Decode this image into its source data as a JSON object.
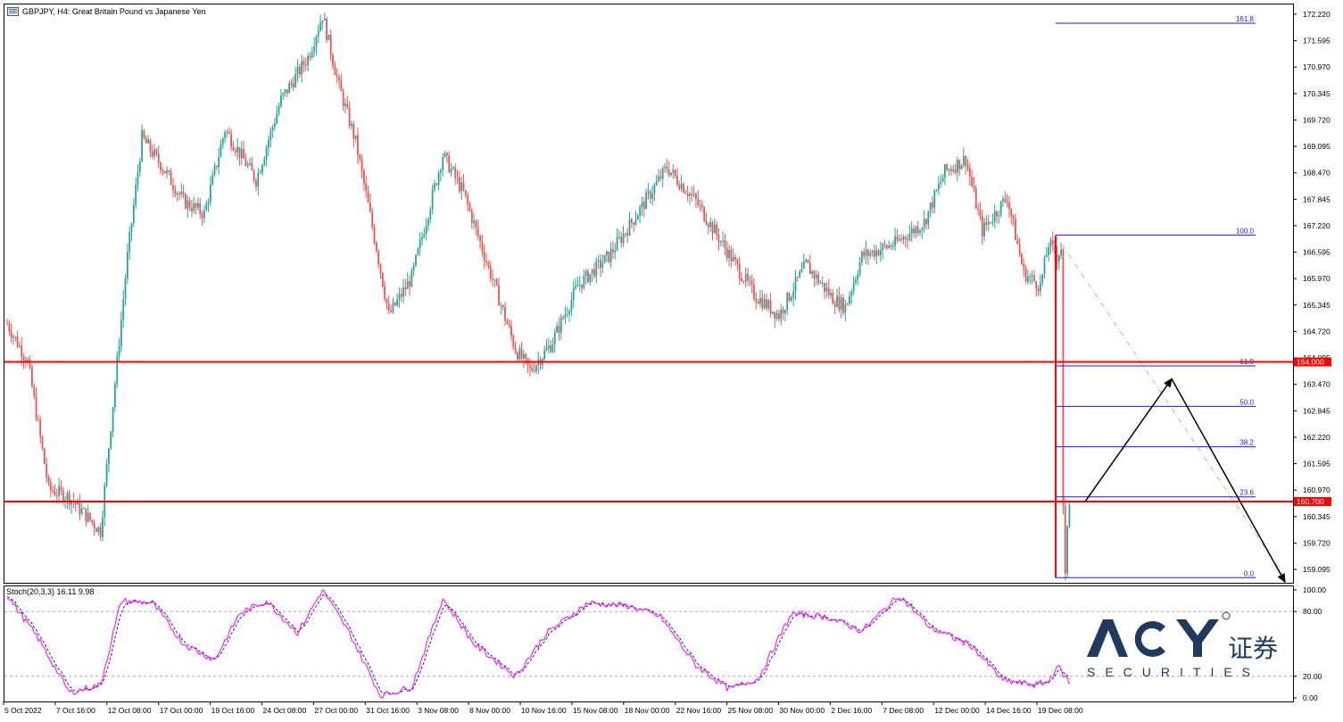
{
  "header": {
    "symbol": "GBPJPY",
    "timeframe": "H4",
    "title_text": "GBPJPY, H4:  Great Britain Pound vs Japanese Yen"
  },
  "price_axis": {
    "labels": [
      "172.220",
      "171.595",
      "170.970",
      "170.345",
      "169.720",
      "169.095",
      "168.470",
      "167.845",
      "167.220",
      "166.595",
      "165.970",
      "165.345",
      "164.720",
      "164.095",
      "163.470",
      "162.845",
      "162.220",
      "161.595",
      "160.970",
      "160.345",
      "159.720",
      "159.095"
    ],
    "value_range": [
      158.78,
      172.45
    ]
  },
  "levels": [
    {
      "price": 164.0,
      "label": "164.000",
      "color": "#ff0000"
    },
    {
      "price": 160.7,
      "label": "160.700",
      "color": "#ff0000"
    }
  ],
  "fibonacci": {
    "color": "#1d1dcc",
    "high": 167.0,
    "low": 158.9,
    "levels": [
      {
        "ratio": 1.618,
        "label": "161.8"
      },
      {
        "ratio": 1.0,
        "label": "100.0"
      },
      {
        "ratio": 0.618,
        "label": "61.8"
      },
      {
        "ratio": 0.5,
        "label": "50.0"
      },
      {
        "ratio": 0.382,
        "label": "38.2"
      },
      {
        "ratio": 0.236,
        "label": "23.6"
      },
      {
        "ratio": 0.0,
        "label": "0.0"
      }
    ]
  },
  "time_axis": {
    "labels": [
      "5 Oct 2022",
      "7 Oct 16:00",
      "12 Oct 08:00",
      "17 Oct 00:00",
      "19 Oct 16:00",
      "24 Oct 08:00",
      "27 Oct 00:00",
      "31 Oct 16:00",
      "3 Nov 08:00",
      "8 Nov 00:00",
      "10 Nov 16:00",
      "15 Nov 08:00",
      "18 Nov 00:00",
      "22 Nov 16:00",
      "25 Nov 08:00",
      "30 Nov 00:00",
      "2 Dec 16:00",
      "7 Dec 08:00",
      "12 Dec 00:00",
      "14 Dec 16:00",
      "19 Dec 08:00"
    ]
  },
  "stochastic": {
    "header_text": "Stoch(20,3,3) 16.11 9.98",
    "main_value": 16.11,
    "signal_value": 9.98,
    "axis_labels": [
      "100.00",
      "80.00",
      "20.00",
      "0.00"
    ],
    "levels": [
      80,
      20
    ],
    "main_color": "#ff00ff",
    "signal_color": "#2020cc"
  },
  "colors": {
    "bull_candle": "#26a69a",
    "bear_candle": "#ef5350",
    "level_line": "#ff0000",
    "arrow": "#000000",
    "grid_text": "#000000"
  },
  "watermark": {
    "brand": "ACY",
    "chinese": "证券",
    "securities": "SECURITIES",
    "registered": "®"
  },
  "chart_data": {
    "type": "candlestick",
    "symbol": "GBPJPY",
    "timeframe": "H4",
    "ylim": [
      158.78,
      172.45
    ],
    "anchors": [
      [
        0,
        164.9
      ],
      [
        10,
        164.0
      ],
      [
        20,
        161.0
      ],
      [
        30,
        160.8
      ],
      [
        45,
        160.0
      ],
      [
        50,
        162.5
      ],
      [
        58,
        166.5
      ],
      [
        65,
        169.3
      ],
      [
        75,
        168.6
      ],
      [
        85,
        167.8
      ],
      [
        95,
        167.5
      ],
      [
        105,
        169.5
      ],
      [
        120,
        168.3
      ],
      [
        132,
        170.2
      ],
      [
        145,
        171.2
      ],
      [
        152,
        172.2
      ],
      [
        160,
        170.5
      ],
      [
        168,
        169.2
      ],
      [
        178,
        166.7
      ],
      [
        184,
        165.1
      ],
      [
        195,
        166.0
      ],
      [
        210,
        168.9
      ],
      [
        220,
        168.0
      ],
      [
        235,
        165.8
      ],
      [
        245,
        164.3
      ],
      [
        252,
        163.8
      ],
      [
        262,
        164.4
      ],
      [
        275,
        165.8
      ],
      [
        290,
        166.5
      ],
      [
        305,
        167.6
      ],
      [
        318,
        168.6
      ],
      [
        332,
        167.8
      ],
      [
        346,
        166.7
      ],
      [
        360,
        165.6
      ],
      [
        372,
        165.1
      ],
      [
        385,
        166.3
      ],
      [
        398,
        165.5
      ],
      [
        404,
        165.3
      ],
      [
        412,
        166.5
      ],
      [
        428,
        166.8
      ],
      [
        442,
        167.3
      ],
      [
        452,
        168.5
      ],
      [
        462,
        168.8
      ],
      [
        470,
        167.1
      ],
      [
        482,
        167.9
      ],
      [
        490,
        166.1
      ],
      [
        498,
        165.8
      ],
      [
        502,
        166.8
      ],
      [
        506,
        166.5
      ],
      [
        508,
        166.7
      ],
      [
        509,
        160.6
      ],
      [
        510,
        158.95
      ],
      [
        511,
        160.2
      ],
      [
        512,
        160.75
      ]
    ],
    "stoch_anchors": [
      [
        0,
        95
      ],
      [
        15,
        55
      ],
      [
        30,
        5
      ],
      [
        45,
        12
      ],
      [
        55,
        90
      ],
      [
        70,
        88
      ],
      [
        85,
        50
      ],
      [
        100,
        35
      ],
      [
        112,
        78
      ],
      [
        125,
        90
      ],
      [
        140,
        60
      ],
      [
        152,
        100
      ],
      [
        165,
        60
      ],
      [
        180,
        2
      ],
      [
        195,
        10
      ],
      [
        210,
        92
      ],
      [
        225,
        50
      ],
      [
        245,
        20
      ],
      [
        260,
        60
      ],
      [
        280,
        88
      ],
      [
        300,
        85
      ],
      [
        315,
        75
      ],
      [
        332,
        30
      ],
      [
        348,
        8
      ],
      [
        362,
        18
      ],
      [
        378,
        78
      ],
      [
        395,
        75
      ],
      [
        412,
        62
      ],
      [
        430,
        95
      ],
      [
        445,
        65
      ],
      [
        465,
        48
      ],
      [
        480,
        16
      ],
      [
        495,
        12
      ],
      [
        502,
        15
      ],
      [
        506,
        30
      ],
      [
        512,
        14
      ]
    ]
  }
}
